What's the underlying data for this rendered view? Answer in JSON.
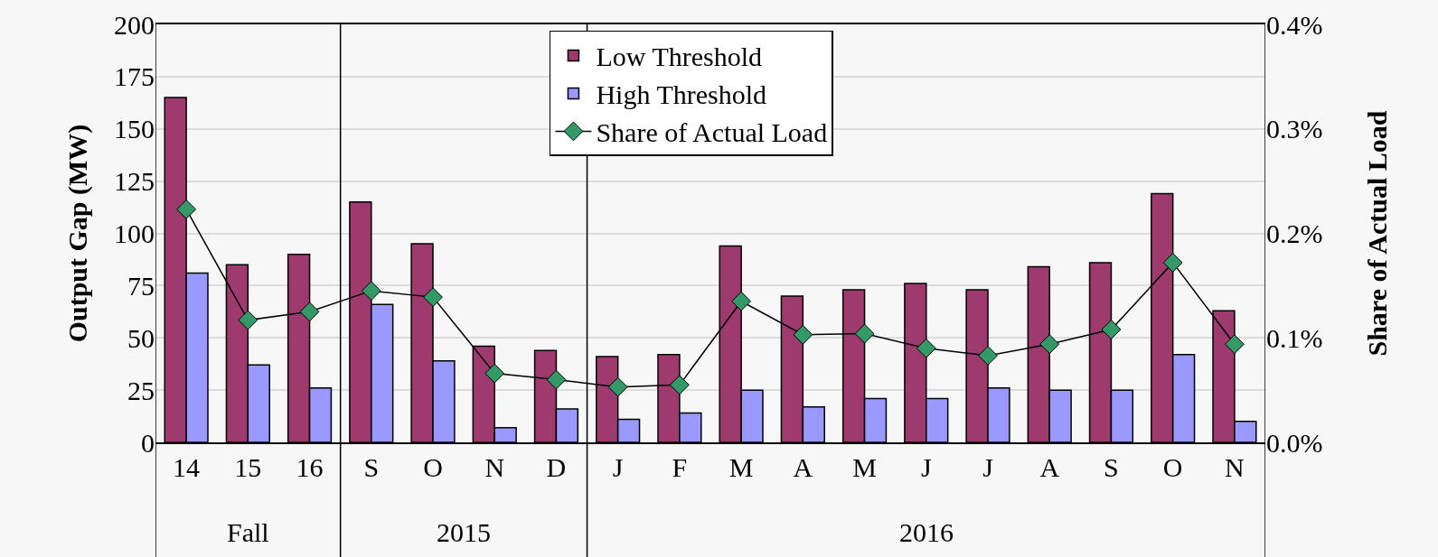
{
  "chart_data": {
    "type": "bar",
    "ylabel": "Output Gap (MW)",
    "y2label": "Share of Actual Load",
    "categories": [
      "14",
      "15",
      "16",
      "S",
      "O",
      "N",
      "D",
      "J",
      "F",
      "M",
      "A",
      "M",
      "J",
      "J",
      "A",
      "S",
      "O",
      "N"
    ],
    "series": [
      {
        "name": "Low Threshold",
        "color": "#9e3a6e",
        "values": [
          165,
          85,
          90,
          115,
          95,
          46,
          44,
          41,
          42,
          94,
          70,
          73,
          76,
          73,
          84,
          86,
          119,
          63
        ]
      },
      {
        "name": "High Threshold",
        "color": "#9999ff",
        "values": [
          81,
          37,
          26,
          66,
          39,
          7,
          16,
          11,
          14,
          25,
          17,
          21,
          21,
          26,
          25,
          25,
          42,
          10
        ]
      },
      {
        "name": "Share of Actual Load",
        "type": "line",
        "axis": "y2",
        "color": "#339966",
        "marker": "diamond",
        "values": [
          0.223,
          0.117,
          0.125,
          0.145,
          0.139,
          0.066,
          0.06,
          0.053,
          0.055,
          0.135,
          0.103,
          0.104,
          0.09,
          0.083,
          0.094,
          0.108,
          0.172,
          0.094
        ]
      }
    ],
    "ylim": [
      0,
      200
    ],
    "yticks": [
      0,
      25,
      50,
      75,
      100,
      125,
      150,
      175,
      200
    ],
    "y2lim": [
      0,
      0.4
    ],
    "y2ticks": [
      {
        "value": 0,
        "label": "0.0%"
      },
      {
        "value": 0.1,
        "label": "0.1%"
      },
      {
        "value": 0.2,
        "label": "0.2%"
      },
      {
        "value": 0.3,
        "label": "0.3%"
      },
      {
        "value": 0.4,
        "label": "0.4%"
      }
    ],
    "annotations": [
      "Fall",
      "2015",
      "2016"
    ],
    "grid": "y",
    "legend": "top"
  }
}
